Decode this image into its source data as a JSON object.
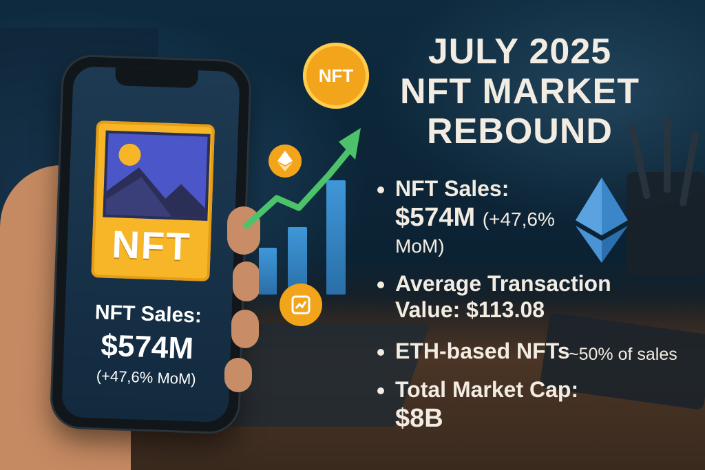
{
  "headline": [
    "JULY 2025",
    "NFT MARKET",
    "REBOUND"
  ],
  "phone": {
    "card_label": "NFT",
    "title": "NFT Sales:",
    "value": "$574M",
    "change": "(+47,6% MoM)"
  },
  "icons": {
    "coin_label": "NFT",
    "eth_coin": "ethereum-icon",
    "chart_coin": "chart-icon",
    "trend_arrow": "up-arrow-icon"
  },
  "bullets": {
    "sales_label": "NFT Sales:",
    "sales_value": "$574M",
    "sales_change_a": "(+47,6%",
    "sales_change_b": "MoM)",
    "avg_label": "Average Transaction",
    "avg_value": "Value: $113.08",
    "eth_label": "ETH-based NFTs",
    "eth_share": "~50% of sales",
    "cap_label": "Total Market Cap:",
    "cap_value": "$8B"
  },
  "colors": {
    "headline": "#f2ece2",
    "accent_gold": "#f2a51a",
    "arrow_green": "#4cc36b",
    "bar_blue": "#3f97d8",
    "eth_blue": "#3a86c9"
  }
}
